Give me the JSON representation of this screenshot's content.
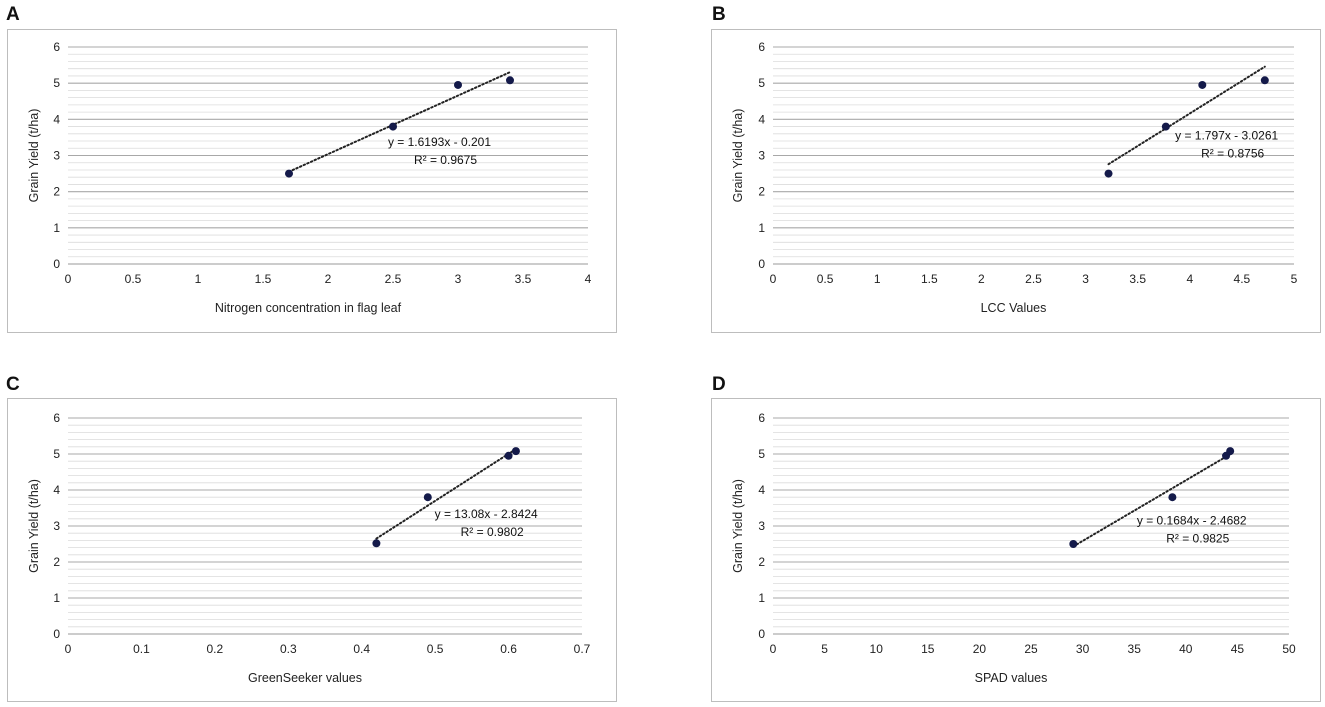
{
  "chart_data": [
    {
      "panel": "A",
      "type": "scatter",
      "title": "",
      "xlabel": "Nitrogen concentration in flag leaf",
      "ylabel": "Grain Yield (t/ha)",
      "xlim": [
        0,
        4
      ],
      "ylim": [
        0,
        6
      ],
      "xticks": [
        0,
        0.5,
        1,
        1.5,
        2,
        2.5,
        3,
        3.5,
        4
      ],
      "xtick_labels": [
        "0",
        "0.5",
        "1",
        "1.5",
        "2",
        "2.5",
        "3",
        "3.5",
        "4"
      ],
      "yticks": [
        0,
        1,
        2,
        3,
        4,
        5,
        6
      ],
      "ytick_labels": [
        "0",
        "1",
        "2",
        "3",
        "4",
        "5",
        "6"
      ],
      "x": [
        1.7,
        2.5,
        3.0,
        3.4
      ],
      "y": [
        2.5,
        3.8,
        4.95,
        5.08
      ],
      "trendline": {
        "slope": 1.6193,
        "intercept": -0.201,
        "x_range": [
          1.7,
          3.4
        ]
      },
      "equation": "y = 1.6193x - 0.201",
      "r2": "R² = 0.9675",
      "grid": "horizontal"
    },
    {
      "panel": "B",
      "type": "scatter",
      "title": "",
      "xlabel": "LCC Values",
      "ylabel": "Grain Yield (t/ha)",
      "xlim": [
        0,
        5
      ],
      "ylim": [
        0,
        6
      ],
      "xticks": [
        0,
        0.5,
        1,
        1.5,
        2,
        2.5,
        3,
        3.5,
        4,
        4.5,
        5
      ],
      "xtick_labels": [
        "0",
        "0.5",
        "1",
        "1.5",
        "2",
        "2.5",
        "3",
        "3.5",
        "4",
        "4.5",
        "5"
      ],
      "yticks": [
        0,
        1,
        2,
        3,
        4,
        5,
        6
      ],
      "ytick_labels": [
        "0",
        "1",
        "2",
        "3",
        "4",
        "5",
        "6"
      ],
      "x": [
        3.22,
        3.77,
        4.12,
        4.72
      ],
      "y": [
        2.5,
        3.8,
        4.95,
        5.08
      ],
      "trendline": {
        "slope": 1.797,
        "intercept": -3.0261,
        "x_range": [
          3.22,
          4.72
        ]
      },
      "equation": "y = 1.797x - 3.0261",
      "r2": "R² = 0.8756",
      "grid": "horizontal"
    },
    {
      "panel": "C",
      "type": "scatter",
      "title": "",
      "xlabel": "GreenSeeker  values",
      "ylabel": "Grain Yield (t/ha)",
      "xlim": [
        0,
        0.7
      ],
      "ylim": [
        0,
        6
      ],
      "xticks": [
        0,
        0.1,
        0.2,
        0.3,
        0.4,
        0.5,
        0.6,
        0.7
      ],
      "xtick_labels": [
        "0",
        "0.1",
        "0.2",
        "0.3",
        "0.4",
        "0.5",
        "0.6",
        "0.7"
      ],
      "yticks": [
        0,
        1,
        2,
        3,
        4,
        5,
        6
      ],
      "ytick_labels": [
        "0",
        "1",
        "2",
        "3",
        "4",
        "5",
        "6"
      ],
      "x": [
        0.42,
        0.49,
        0.6,
        0.61
      ],
      "y": [
        2.52,
        3.8,
        4.95,
        5.08
      ],
      "trendline": {
        "slope": 13.08,
        "intercept": -2.8424,
        "x_range": [
          0.42,
          0.61
        ]
      },
      "equation": "y = 13.08x - 2.8424",
      "r2": "R² = 0.9802",
      "grid": "horizontal"
    },
    {
      "panel": "D",
      "type": "scatter",
      "title": "",
      "xlabel": "SPAD values",
      "ylabel": "Grain Yield (t/ha)",
      "xlim": [
        0,
        50
      ],
      "ylim": [
        0,
        6
      ],
      "xticks": [
        0,
        5,
        10,
        15,
        20,
        25,
        30,
        35,
        40,
        45,
        50
      ],
      "xtick_labels": [
        "0",
        "5",
        "10",
        "15",
        "20",
        "25",
        "30",
        "35",
        "40",
        "45",
        "50"
      ],
      "yticks": [
        0,
        1,
        2,
        3,
        4,
        5,
        6
      ],
      "ytick_labels": [
        "0",
        "1",
        "2",
        "3",
        "4",
        "5",
        "6"
      ],
      "x": [
        29.1,
        38.7,
        43.9,
        44.3
      ],
      "y": [
        2.5,
        3.8,
        4.95,
        5.08
      ],
      "trendline": {
        "slope": 0.1684,
        "intercept": -2.4682,
        "x_range": [
          29.1,
          44.3
        ]
      },
      "equation": "y = 0.1684x - 2.4682",
      "r2": "R² = 0.9825",
      "grid": "horizontal"
    }
  ],
  "style": {
    "point_color": "#141a4a",
    "major_grid_color": "#a8a8a8",
    "minor_grid_color": "#dcdcdc",
    "trend_color": "#222222",
    "axis_color": "#999999"
  }
}
